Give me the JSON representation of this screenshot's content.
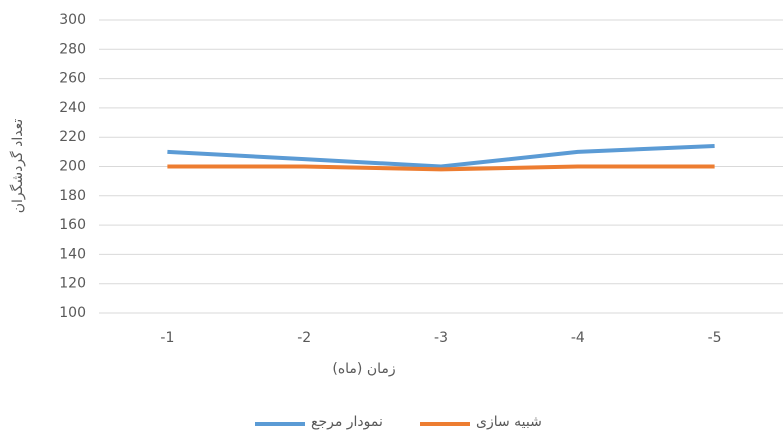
{
  "chart_data": {
    "type": "line",
    "x_label": "زمان (ماه)",
    "y_label": "تعداد گردشگران",
    "categories": [
      "-1",
      "-2",
      "-3",
      "-4",
      "-5"
    ],
    "series": [
      {
        "name": "نمودار مرجع",
        "color": "#5b9bd5",
        "values": [
          210,
          205,
          200,
          210,
          214
        ]
      },
      {
        "name": "شبیه سازی",
        "color": "#ed7d31",
        "values": [
          200,
          200,
          198,
          200,
          200
        ]
      }
    ],
    "ylim": [
      100,
      300
    ],
    "yticks": [
      100,
      120,
      140,
      160,
      180,
      200,
      220,
      240,
      260,
      280,
      300
    ],
    "grid": true,
    "legend": "bottom"
  }
}
